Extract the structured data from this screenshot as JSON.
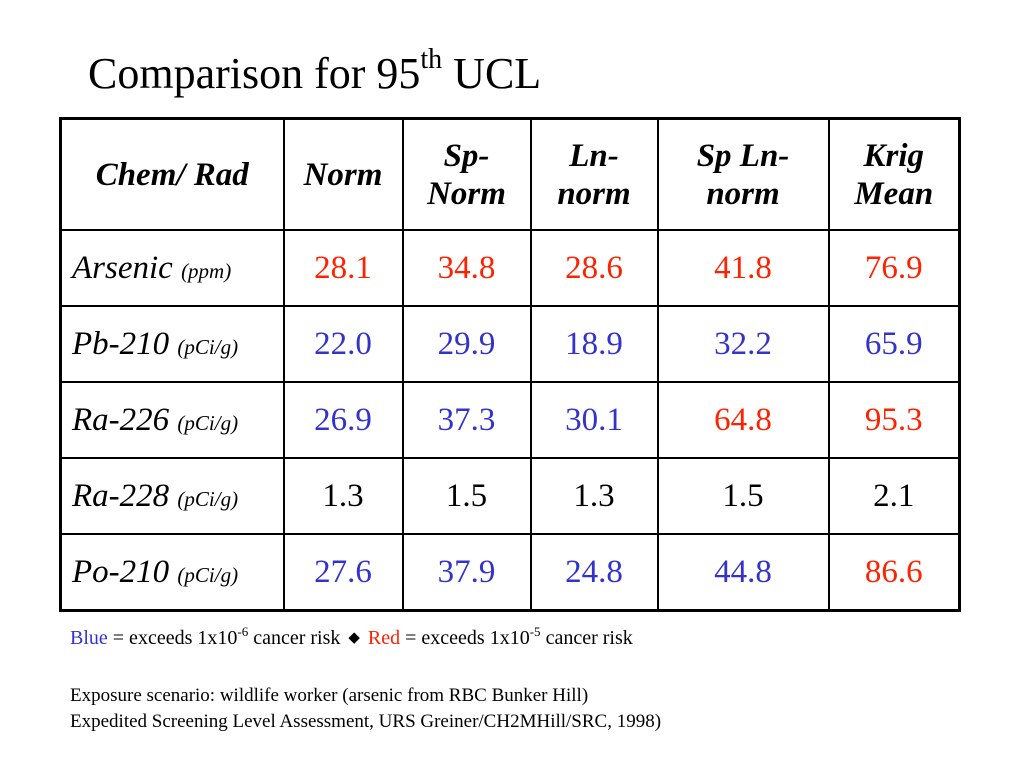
{
  "title": {
    "text": "Comparison for 95",
    "superscript": "th",
    "suffix": " UCL"
  },
  "table": {
    "headers": [
      [
        "Chem/ Rad"
      ],
      [
        "Norm"
      ],
      [
        "Sp-",
        "Norm"
      ],
      [
        "Ln-",
        "norm"
      ],
      [
        "Sp Ln-",
        "norm"
      ],
      [
        "Krig",
        "Mean"
      ]
    ],
    "rows": [
      {
        "name": "Arsenic",
        "unit": "(ppm)",
        "values": [
          "28.1",
          "34.8",
          "28.6",
          "41.8",
          "76.9"
        ],
        "colors": [
          "red",
          "red",
          "red",
          "red",
          "red"
        ]
      },
      {
        "name": "Pb-210",
        "unit": "(pCi/g)",
        "values": [
          "22.0",
          "29.9",
          "18.9",
          "32.2",
          "65.9"
        ],
        "colors": [
          "blue",
          "blue",
          "blue",
          "blue",
          "blue"
        ]
      },
      {
        "name": "Ra-226",
        "unit": "(pCi/g)",
        "values": [
          "26.9",
          "37.3",
          "30.1",
          "64.8",
          "95.3"
        ],
        "colors": [
          "blue",
          "blue",
          "blue",
          "red",
          "red"
        ]
      },
      {
        "name": "Ra-228",
        "unit": "(pCi/g)",
        "values": [
          "1.3",
          "1.5",
          "1.3",
          "1.5",
          "2.1"
        ],
        "colors": [
          "black",
          "black",
          "black",
          "black",
          "black"
        ]
      },
      {
        "name": "Po-210",
        "unit": "(pCi/g)",
        "values": [
          "27.6",
          "37.9",
          "24.8",
          "44.8",
          "86.6"
        ],
        "colors": [
          "blue",
          "blue",
          "blue",
          "blue",
          "red"
        ]
      }
    ]
  },
  "legend": {
    "blue_word": "Blue",
    "blue_text": " = exceeds 1x10",
    "blue_exp": "-6",
    "blue_suffix": " cancer risk",
    "separator_icon": "diamond-bullet-icon",
    "red_word": "Red",
    "red_text": " = exceeds 1x10",
    "red_exp": "-5",
    "red_suffix": " cancer risk"
  },
  "notes": {
    "exposure": "Exposure scenario: wildlife worker (arsenic from RBC Bunker Hill)",
    "source": "Expedited Screening Level Assessment, URS Greiner/CH2MHill/SRC, 1998)"
  },
  "colors": {
    "blue": "#3333cc",
    "red": "#ff2200",
    "black": "#000000"
  }
}
